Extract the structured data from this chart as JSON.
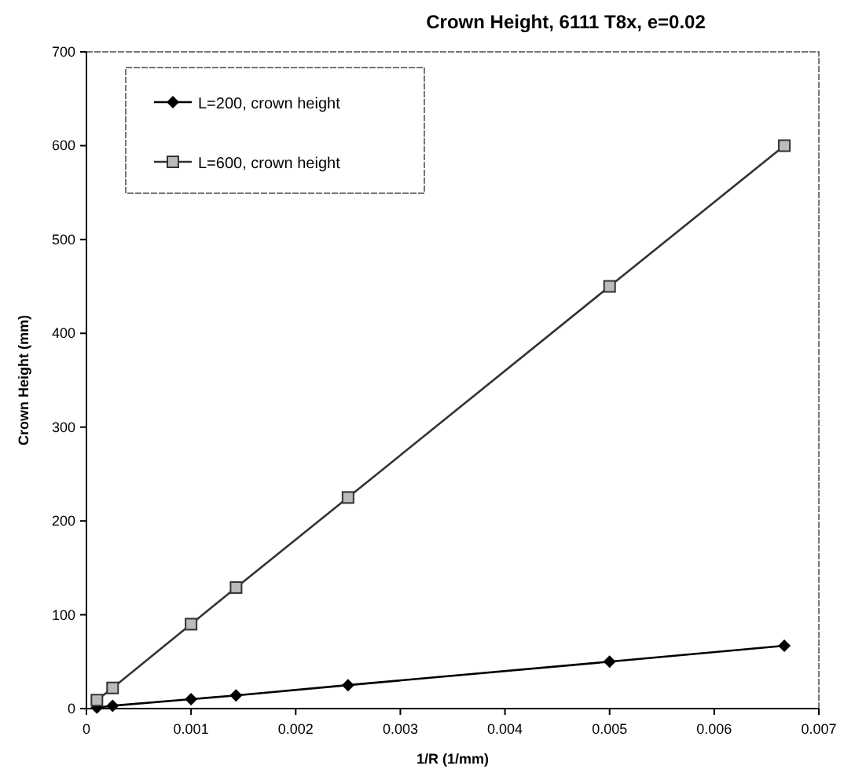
{
  "chart_data": {
    "type": "line",
    "title": "Crown Height, 6111 T8x, e=0.02",
    "xlabel": "1/R (1/mm)",
    "ylabel": "Crown Height (mm)",
    "xlim": [
      0,
      0.007
    ],
    "xticks": [
      0,
      0.001,
      0.002,
      0.003,
      0.004,
      0.005,
      0.006,
      0.007
    ],
    "ylim": [
      0,
      700
    ],
    "yticks": [
      0,
      100,
      200,
      300,
      400,
      500,
      600,
      700
    ],
    "grid": false,
    "legend": "top left",
    "line_style": "solid",
    "series": [
      {
        "name": "L=200, crown height",
        "color": "#000000",
        "marker": "diamond",
        "x": [
          0.0001,
          0.00025,
          0.001,
          0.00143,
          0.0025,
          0.005,
          0.00667
        ],
        "values": [
          1,
          3,
          10,
          14,
          25,
          50,
          67
        ]
      },
      {
        "name": "L=600, crown height",
        "color": "#333333",
        "marker": "square",
        "x": [
          0.0001,
          0.00025,
          0.001,
          0.00143,
          0.0025,
          0.005,
          0.00667
        ],
        "values": [
          9,
          22,
          90,
          129,
          225,
          450,
          600
        ]
      }
    ]
  }
}
